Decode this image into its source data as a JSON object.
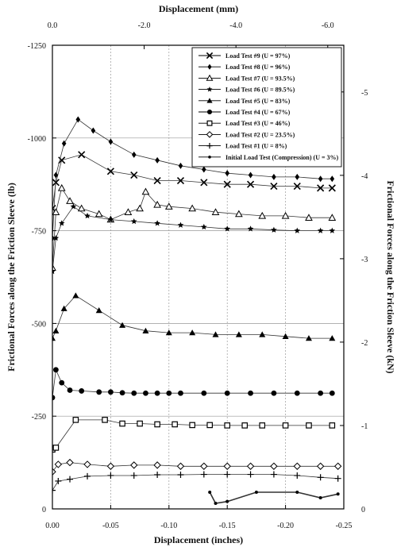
{
  "chart_data": {
    "type": "line",
    "xlabel": "Displacement (inches)",
    "ylabel": "Frictional Forces along the Friction Sleeve (lb)",
    "x2label": "Displacement (mm)",
    "y2label": "Frictional Forces along the Friction Sleeve (kN)",
    "xlim": [
      0,
      -0.25
    ],
    "ylim": [
      0,
      -1250
    ],
    "x2lim": [
      0,
      -6.35
    ],
    "y2lim": [
      0,
      -5.56
    ],
    "grid": true,
    "legend_position": "top-right",
    "x_ticks": [
      "0.00",
      "-0.05",
      "-0.10",
      "-0.15",
      "-0.20",
      "-0.25"
    ],
    "y_ticks": [
      "0",
      "-250",
      "-500",
      "-750",
      "-1000",
      "-1250"
    ],
    "x2_ticks": [
      "0.0",
      "-2.0",
      "-4.0",
      "-6.0"
    ],
    "y2_ticks": [
      "0",
      "-1",
      "-2",
      "-3",
      "-4",
      "-5"
    ],
    "series": [
      {
        "name": "Load Test #9 (U = 97%)",
        "marker": "x",
        "x": [
          0,
          -0.003,
          -0.008,
          -0.025,
          -0.05,
          -0.07,
          -0.09,
          -0.11,
          -0.13,
          -0.15,
          -0.17,
          -0.19,
          -0.21,
          -0.23,
          -0.24
        ],
        "y": [
          -810,
          -880,
          -940,
          -955,
          -910,
          -900,
          -885,
          -885,
          -880,
          -875,
          -875,
          -870,
          -870,
          -865,
          -865
        ]
      },
      {
        "name": "Load Test #8 (U = 96%)",
        "marker": "diamond-filled",
        "x": [
          0,
          -0.003,
          -0.01,
          -0.022,
          -0.035,
          -0.05,
          -0.07,
          -0.09,
          -0.11,
          -0.13,
          -0.15,
          -0.17,
          -0.19,
          -0.21,
          -0.23,
          -0.24
        ],
        "y": [
          -730,
          -900,
          -985,
          -1050,
          -1020,
          -990,
          -955,
          -940,
          -925,
          -915,
          -905,
          -900,
          -895,
          -895,
          -890,
          -890
        ]
      },
      {
        "name": "Load Test #7 (U = 93.5%)",
        "marker": "triangle-open",
        "x": [
          0,
          -0.003,
          -0.008,
          -0.015,
          -0.025,
          -0.04,
          -0.05,
          -0.065,
          -0.075,
          -0.08,
          -0.09,
          -0.1,
          -0.12,
          -0.14,
          -0.16,
          -0.18,
          -0.2,
          -0.22,
          -0.24
        ],
        "y": [
          -650,
          -800,
          -865,
          -830,
          -810,
          -795,
          -780,
          -800,
          -810,
          -855,
          -820,
          -815,
          -810,
          -800,
          -795,
          -790,
          -790,
          -785,
          -785
        ]
      },
      {
        "name": "Load Test #6 (U = 89.5%)",
        "marker": "star",
        "x": [
          0,
          -0.003,
          -0.008,
          -0.018,
          -0.03,
          -0.05,
          -0.07,
          -0.09,
          -0.11,
          -0.13,
          -0.15,
          -0.17,
          -0.19,
          -0.21,
          -0.23,
          -0.24
        ],
        "y": [
          -640,
          -730,
          -770,
          -815,
          -790,
          -780,
          -775,
          -770,
          -765,
          -760,
          -755,
          -755,
          -752,
          -750,
          -750,
          -750
        ]
      },
      {
        "name": "Load Test #5 (U = 83%)",
        "marker": "triangle-filled",
        "x": [
          0,
          -0.003,
          -0.01,
          -0.02,
          -0.04,
          -0.06,
          -0.08,
          -0.1,
          -0.12,
          -0.14,
          -0.16,
          -0.18,
          -0.2,
          -0.22,
          -0.24
        ],
        "y": [
          -460,
          -480,
          -540,
          -575,
          -535,
          -495,
          -480,
          -475,
          -475,
          -470,
          -470,
          -470,
          -465,
          -460,
          -460
        ]
      },
      {
        "name": "Load Test #4 (U = 67%)",
        "marker": "circle-filled",
        "x": [
          0,
          -0.003,
          -0.008,
          -0.015,
          -0.025,
          -0.04,
          -0.05,
          -0.06,
          -0.07,
          -0.08,
          -0.09,
          -0.1,
          -0.11,
          -0.13,
          -0.15,
          -0.17,
          -0.19,
          -0.21,
          -0.23,
          -0.24
        ],
        "y": [
          -300,
          -375,
          -340,
          -320,
          -318,
          -315,
          -315,
          -313,
          -312,
          -312,
          -312,
          -312,
          -312,
          -312,
          -312,
          -312,
          -312,
          -312,
          -312,
          -312
        ]
      },
      {
        "name": "Load Test #3 (U = 46%)",
        "marker": "square-open",
        "x": [
          0,
          -0.003,
          -0.02,
          -0.045,
          -0.06,
          -0.075,
          -0.09,
          -0.105,
          -0.12,
          -0.135,
          -0.15,
          -0.165,
          -0.18,
          -0.2,
          -0.22,
          -0.24
        ],
        "y": [
          -160,
          -165,
          -240,
          -240,
          -230,
          -230,
          -228,
          -228,
          -226,
          -226,
          -225,
          -225,
          -225,
          -225,
          -225,
          -225
        ]
      },
      {
        "name": "Load Test #2 (U = 23.5%)",
        "marker": "diamond-open",
        "x": [
          0,
          -0.005,
          -0.015,
          -0.03,
          -0.05,
          -0.07,
          -0.09,
          -0.11,
          -0.13,
          -0.15,
          -0.17,
          -0.19,
          -0.21,
          -0.23,
          -0.245
        ],
        "y": [
          -100,
          -120,
          -125,
          -120,
          -115,
          -118,
          -118,
          -115,
          -115,
          -115,
          -115,
          -115,
          -115,
          -115,
          -115
        ]
      },
      {
        "name": "Load Test #1 (U = 8%)",
        "marker": "plus",
        "x": [
          0,
          -0.005,
          -0.015,
          -0.03,
          -0.05,
          -0.07,
          -0.09,
          -0.11,
          -0.13,
          -0.15,
          -0.17,
          -0.19,
          -0.21,
          -0.23,
          -0.245
        ],
        "y": [
          -50,
          -75,
          -80,
          -88,
          -90,
          -90,
          -92,
          -92,
          -93,
          -93,
          -93,
          -93,
          -90,
          -85,
          -82
        ]
      },
      {
        "name": "Initial Load Test (Compression) (U = 3%)",
        "marker": "circle-small",
        "x": [
          -0.135,
          -0.14,
          -0.15,
          -0.175,
          -0.21,
          -0.23,
          -0.245
        ],
        "y": [
          -45,
          -15,
          -20,
          -45,
          -45,
          -30,
          -40
        ]
      }
    ]
  }
}
